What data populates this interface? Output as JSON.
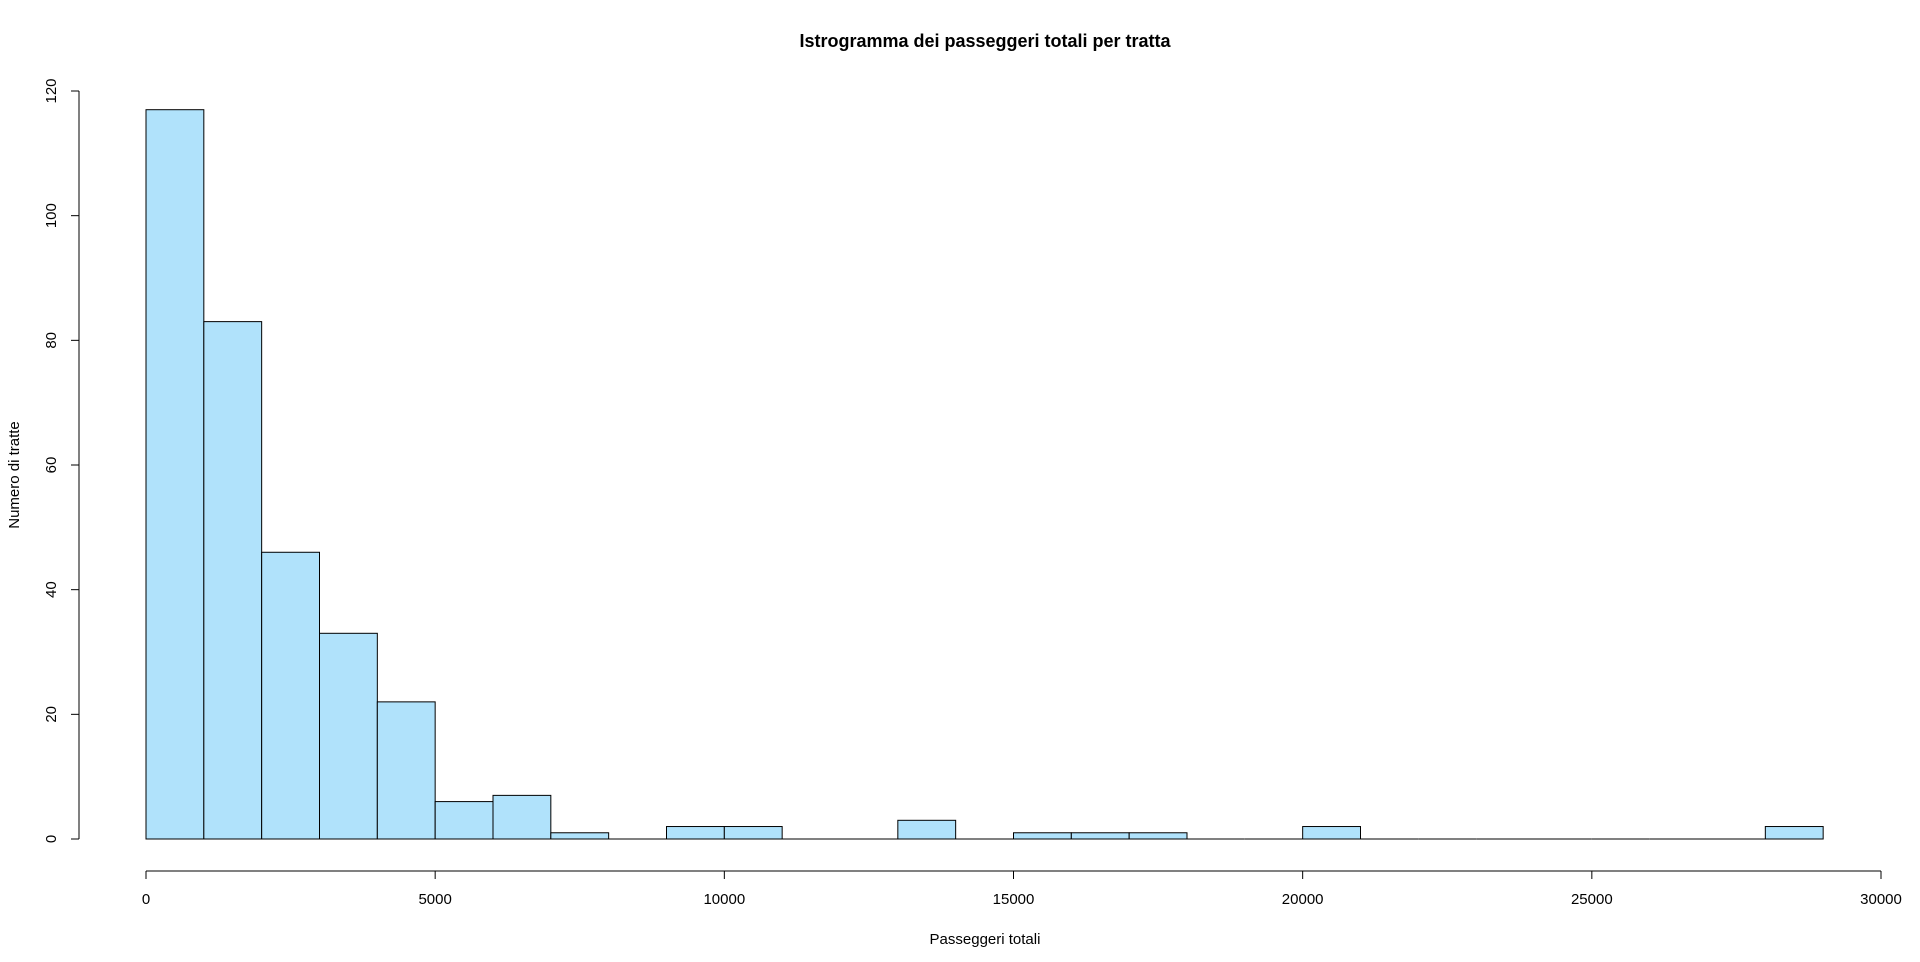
{
  "chart_data": {
    "type": "bar",
    "subtype": "histogram",
    "title": "Istrogramma dei passeggeri totali per tratta",
    "xlabel": "Passeggeri totali",
    "ylabel": "Numero di tratte",
    "xlim": [
      0,
      30000
    ],
    "ylim": [
      0,
      120
    ],
    "x_ticks": [
      "0",
      "5000",
      "10000",
      "15000",
      "20000",
      "25000",
      "30000"
    ],
    "y_ticks": [
      "0",
      "20",
      "40",
      "60",
      "80",
      "100",
      "120"
    ],
    "bin_width": 1000,
    "bins": [
      {
        "start": 0,
        "end": 1000,
        "count": 117
      },
      {
        "start": 1000,
        "end": 2000,
        "count": 83
      },
      {
        "start": 2000,
        "end": 3000,
        "count": 46
      },
      {
        "start": 3000,
        "end": 4000,
        "count": 33
      },
      {
        "start": 4000,
        "end": 5000,
        "count": 22
      },
      {
        "start": 5000,
        "end": 6000,
        "count": 6
      },
      {
        "start": 6000,
        "end": 7000,
        "count": 7
      },
      {
        "start": 7000,
        "end": 8000,
        "count": 1
      },
      {
        "start": 8000,
        "end": 9000,
        "count": 0
      },
      {
        "start": 9000,
        "end": 10000,
        "count": 2
      },
      {
        "start": 10000,
        "end": 11000,
        "count": 2
      },
      {
        "start": 11000,
        "end": 12000,
        "count": 0
      },
      {
        "start": 12000,
        "end": 13000,
        "count": 0
      },
      {
        "start": 13000,
        "end": 14000,
        "count": 3
      },
      {
        "start": 14000,
        "end": 15000,
        "count": 0
      },
      {
        "start": 15000,
        "end": 16000,
        "count": 1
      },
      {
        "start": 16000,
        "end": 17000,
        "count": 1
      },
      {
        "start": 17000,
        "end": 18000,
        "count": 1
      },
      {
        "start": 18000,
        "end": 19000,
        "count": 0
      },
      {
        "start": 19000,
        "end": 20000,
        "count": 0
      },
      {
        "start": 20000,
        "end": 21000,
        "count": 2
      },
      {
        "start": 21000,
        "end": 22000,
        "count": 0
      },
      {
        "start": 22000,
        "end": 23000,
        "count": 0
      },
      {
        "start": 23000,
        "end": 24000,
        "count": 0
      },
      {
        "start": 24000,
        "end": 25000,
        "count": 0
      },
      {
        "start": 25000,
        "end": 26000,
        "count": 0
      },
      {
        "start": 26000,
        "end": 27000,
        "count": 0
      },
      {
        "start": 27000,
        "end": 28000,
        "count": 0
      },
      {
        "start": 28000,
        "end": 29000,
        "count": 2
      }
    ],
    "bar_color": "#b0e2fb",
    "bar_stroke": "#000000",
    "grid": false,
    "legend": "none"
  }
}
